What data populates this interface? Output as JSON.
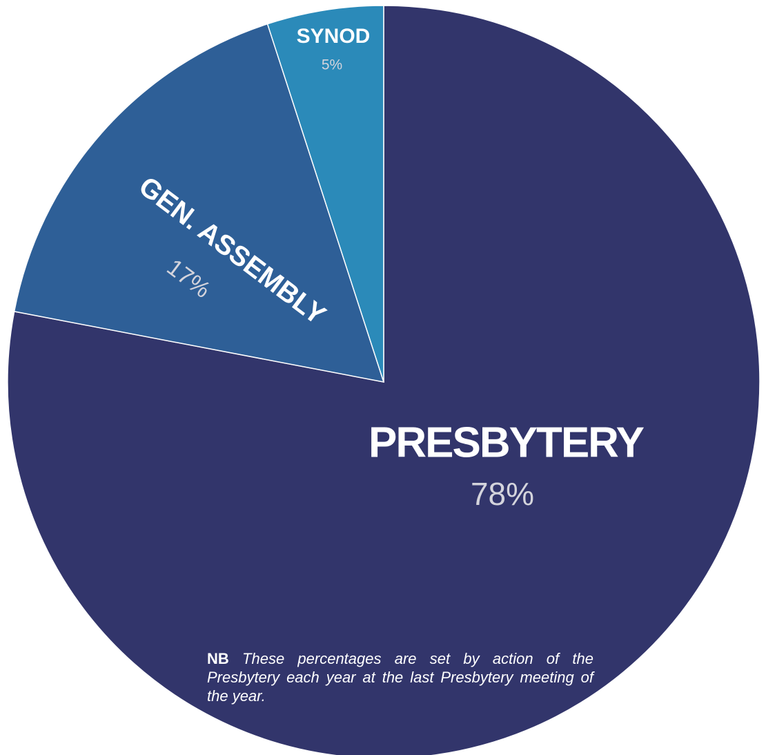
{
  "chart_data": {
    "type": "pie",
    "categories": [
      "PRESBYTERY",
      "GEN. ASSEMBLY",
      "SYNOD"
    ],
    "values": [
      78,
      17,
      5
    ],
    "value_labels": [
      "78%",
      "17%",
      "5%"
    ],
    "colors": [
      "#32356b",
      "#2e5f97",
      "#2b8ab9"
    ],
    "note_label": "NB",
    "note": "These percentages are set by action of the Presbytery each year at the last Presbytery meeting of the year."
  }
}
